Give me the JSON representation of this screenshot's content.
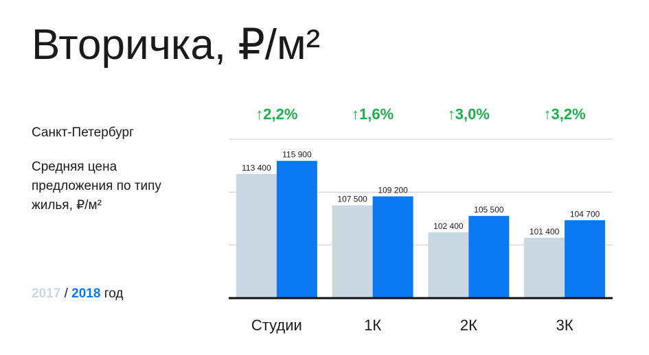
{
  "chart_data": {
    "type": "bar",
    "title": "Вторичка, ₽/м²",
    "subtitle": "Санкт-Петербург",
    "description": "Средняя цена предложения по типу жилья, ₽/м²",
    "categories": [
      "Студии",
      "1К",
      "2К",
      "3К"
    ],
    "series": [
      {
        "name": "2017",
        "color": "#c9d7e1",
        "values": [
          113400,
          107500,
          102400,
          101400
        ],
        "value_labels": [
          "113 400",
          "107 500",
          "102 400",
          "101 400"
        ]
      },
      {
        "name": "2018",
        "color": "#0a78f0",
        "values": [
          115900,
          109200,
          105500,
          104700
        ],
        "value_labels": [
          "115 900",
          "109 200",
          "105 500",
          "104 700"
        ]
      }
    ],
    "annotations": [
      "↑2,2%",
      "↑1,6%",
      "↑3,0%",
      "↑3,2%"
    ],
    "annotation_color": "#1fae4b",
    "legend_separator": "/",
    "legend_suffix": "год",
    "ylim": [
      90000,
      120000
    ],
    "yticks": [
      100000,
      110000,
      120000
    ],
    "grid": true
  }
}
